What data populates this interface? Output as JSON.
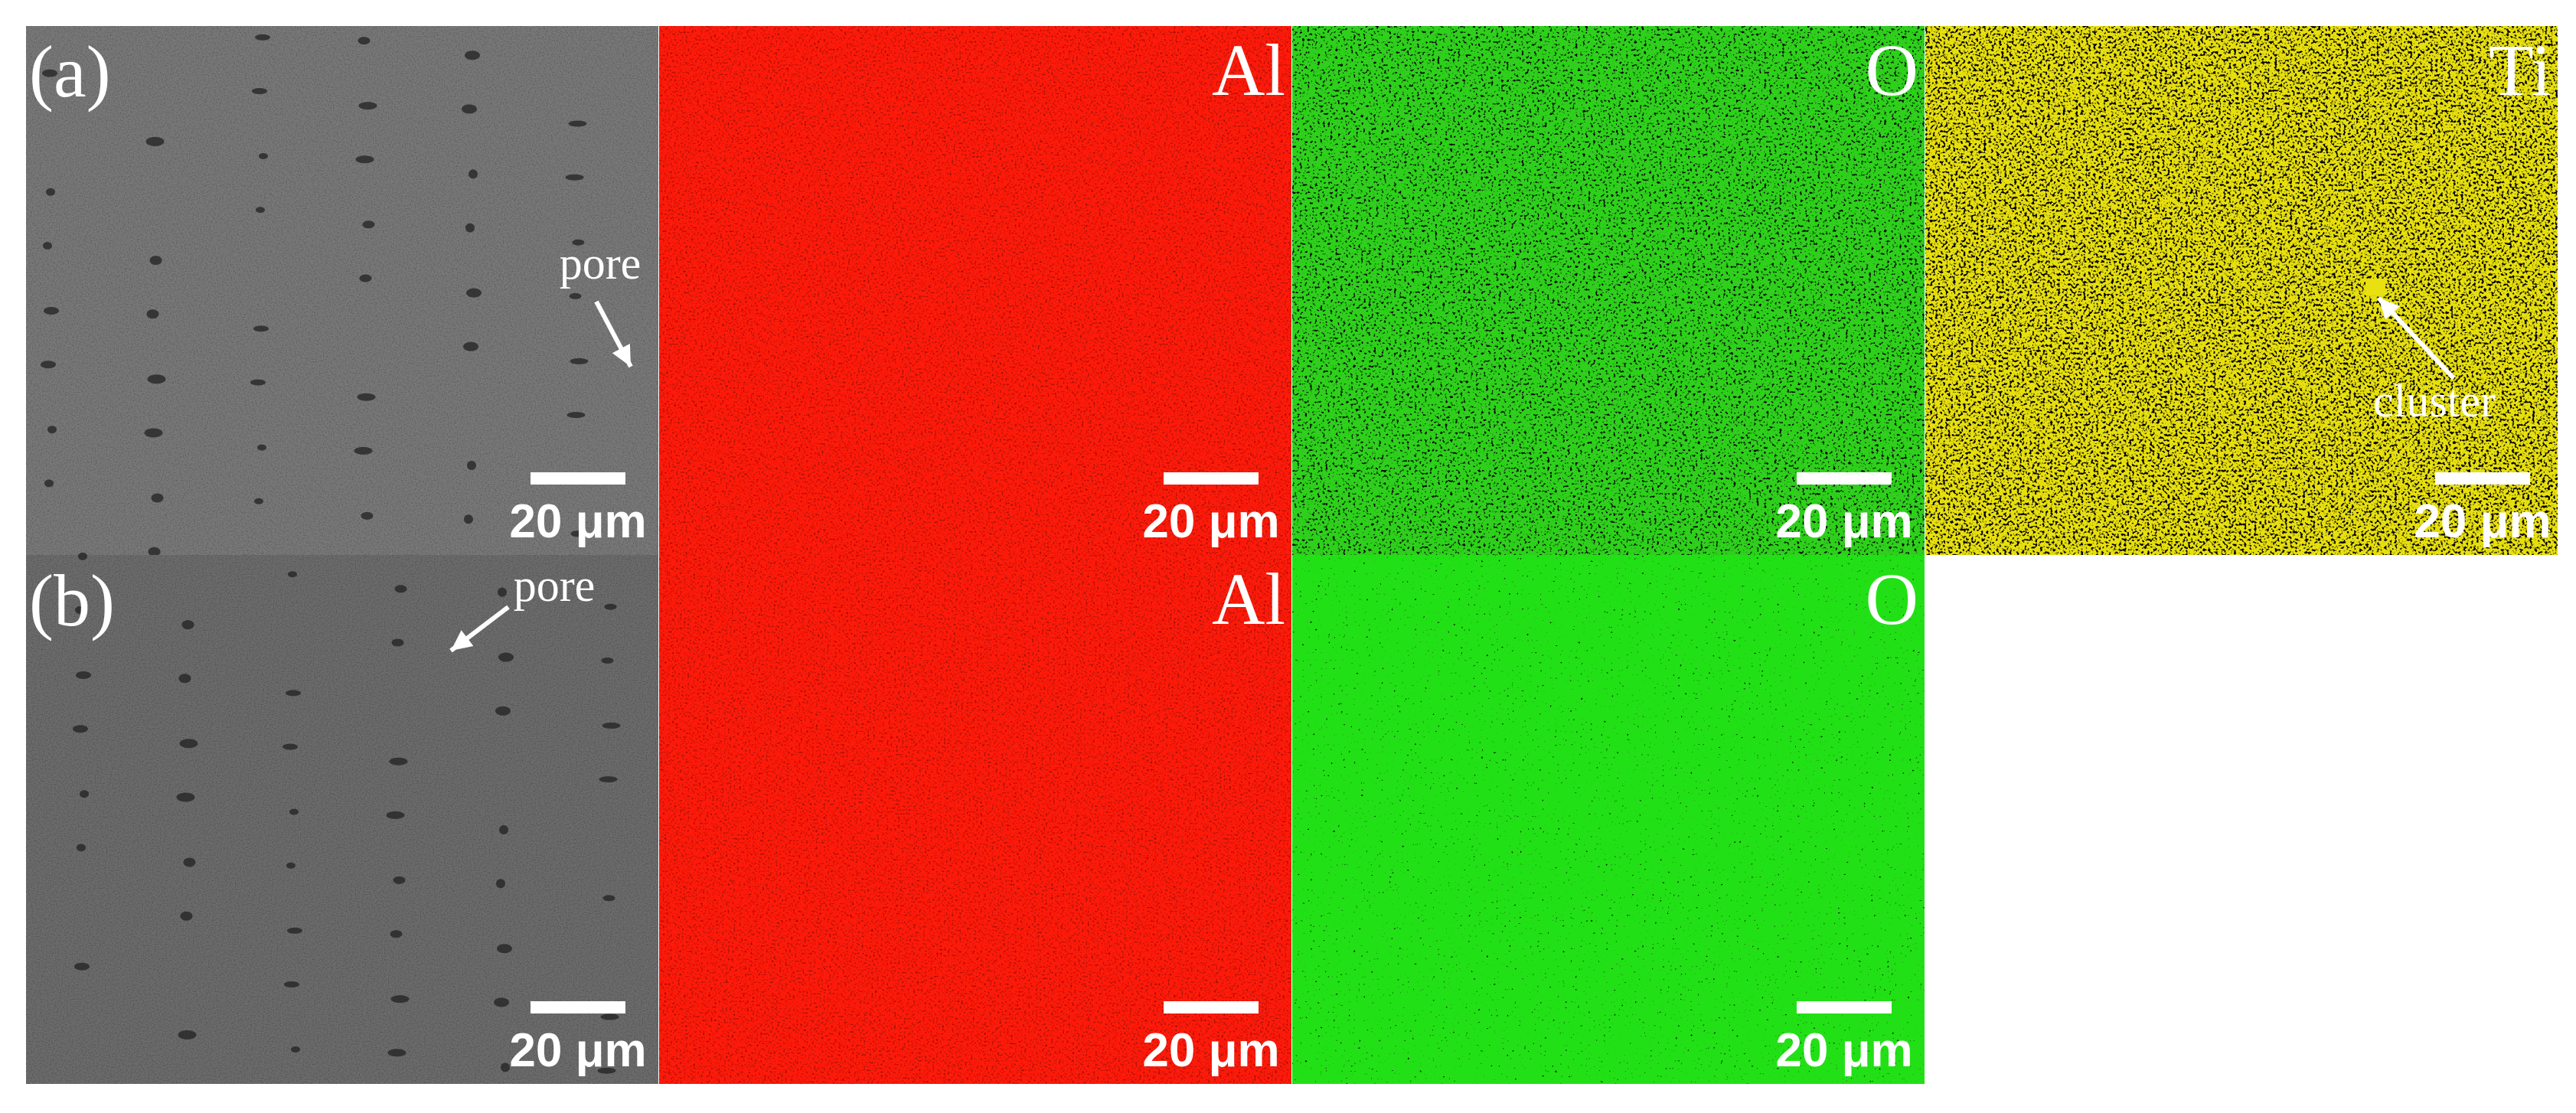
{
  "rows": [
    {
      "label": "(a)",
      "panels": [
        {
          "scale_bar": "20 μm",
          "annotation": "pore"
        },
        {
          "element": "Al",
          "color": "#ff1a0a",
          "scale_bar": "20 μm"
        },
        {
          "element": "O",
          "color": "#2fd01c",
          "scale_bar": "20 μm"
        },
        {
          "element": "Ti",
          "color": "#e8e010",
          "scale_bar": "20 μm",
          "annotation": "cluster"
        }
      ]
    },
    {
      "label": "(b)",
      "panels": [
        {
          "scale_bar": "20 μm",
          "annotation": "pore"
        },
        {
          "element": "Al",
          "color": "#ff1a0a",
          "scale_bar": "20 μm"
        },
        {
          "element": "O",
          "color": "#22e014",
          "scale_bar": "20 μm"
        }
      ]
    }
  ]
}
